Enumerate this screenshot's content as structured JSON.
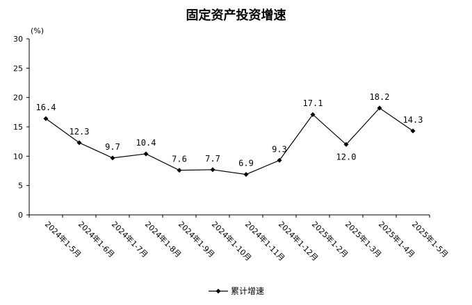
{
  "chart_data": {
    "type": "line",
    "title": "固定资产投资增速",
    "unit_label": "(%)",
    "categories": [
      "2024年1-5月",
      "2024年1-6月",
      "2024年1-7月",
      "2024年1-8月",
      "2024年1-9月",
      "2024年1-10月",
      "2024年1-11月",
      "2024年1-12月",
      "2025年1-2月",
      "2025年1-3月",
      "2025年1-4月",
      "2025年1-5月"
    ],
    "series": [
      {
        "name": "累计增速",
        "values": [
          16.4,
          12.3,
          9.7,
          10.4,
          7.6,
          7.7,
          6.9,
          9.3,
          17.1,
          12.0,
          18.2,
          14.3
        ],
        "value_labels": [
          "16.4",
          "12.3",
          "9.7",
          "10.4",
          "7.6",
          "7.7",
          "6.9",
          "9.3",
          "17.1",
          "12.0",
          "18.2",
          "14.3"
        ],
        "color": "#000000",
        "marker": "diamond"
      }
    ],
    "ylim": [
      0,
      30
    ],
    "yticks": [
      "0",
      "5",
      "10",
      "15",
      "20",
      "25",
      "30"
    ],
    "grid": false,
    "legend": "bottom-center"
  }
}
